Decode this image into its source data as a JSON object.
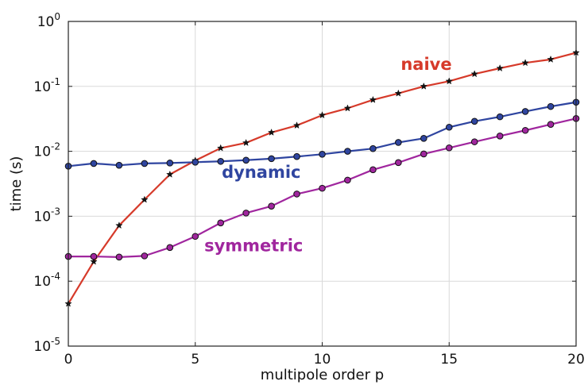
{
  "chart_data": {
    "type": "line",
    "xlabel": "multipole order  p",
    "ylabel": "time (s)",
    "xlim": [
      0,
      20
    ],
    "ylim": [
      1e-05,
      1
    ],
    "yscale": "log",
    "grid": true,
    "x_ticks": [
      0,
      5,
      10,
      15,
      20
    ],
    "y_ticks": [
      {
        "value": 1e-05,
        "base": "10",
        "exp": "-5"
      },
      {
        "value": 0.0001,
        "base": "10",
        "exp": "-4"
      },
      {
        "value": 0.001,
        "base": "10",
        "exp": "-3"
      },
      {
        "value": 0.01,
        "base": "10",
        "exp": "-2"
      },
      {
        "value": 0.1,
        "base": "10",
        "exp": "-1"
      },
      {
        "value": 1,
        "base": "10",
        "exp": "0"
      }
    ],
    "x": [
      0,
      1,
      2,
      3,
      4,
      5,
      6,
      7,
      8,
      9,
      10,
      11,
      12,
      13,
      14,
      15,
      16,
      17,
      18,
      19,
      20
    ],
    "series": [
      {
        "name": "naive",
        "color": "#d63a2a",
        "marker": "star",
        "label_at": [
          14.1,
          0.18
        ],
        "values": [
          4.5e-05,
          0.0002,
          0.00072,
          0.0018,
          0.0044,
          0.0072,
          0.0112,
          0.0135,
          0.0195,
          0.025,
          0.036,
          0.046,
          0.062,
          0.078,
          0.1,
          0.12,
          0.155,
          0.19,
          0.23,
          0.26,
          0.33
        ]
      },
      {
        "name": "dynamic",
        "color": "#2f45a0",
        "marker": "circle",
        "label_at": [
          7.6,
          0.0039
        ],
        "values": [
          0.0059,
          0.0065,
          0.0061,
          0.0065,
          0.0066,
          0.0068,
          0.007,
          0.0073,
          0.0077,
          0.0083,
          0.009,
          0.01,
          0.011,
          0.0137,
          0.0158,
          0.0235,
          0.029,
          0.034,
          0.041,
          0.049,
          0.057
        ]
      },
      {
        "name": "symmetric",
        "color": "#a0269e",
        "marker": "circle",
        "label_at": [
          7.3,
          0.00029
        ],
        "values": [
          0.00024,
          0.00024,
          0.000235,
          0.000245,
          0.00033,
          0.00049,
          0.00079,
          0.00112,
          0.00143,
          0.0022,
          0.0027,
          0.0036,
          0.0052,
          0.0067,
          0.0091,
          0.0113,
          0.014,
          0.0172,
          0.021,
          0.026,
          0.032
        ]
      }
    ]
  }
}
